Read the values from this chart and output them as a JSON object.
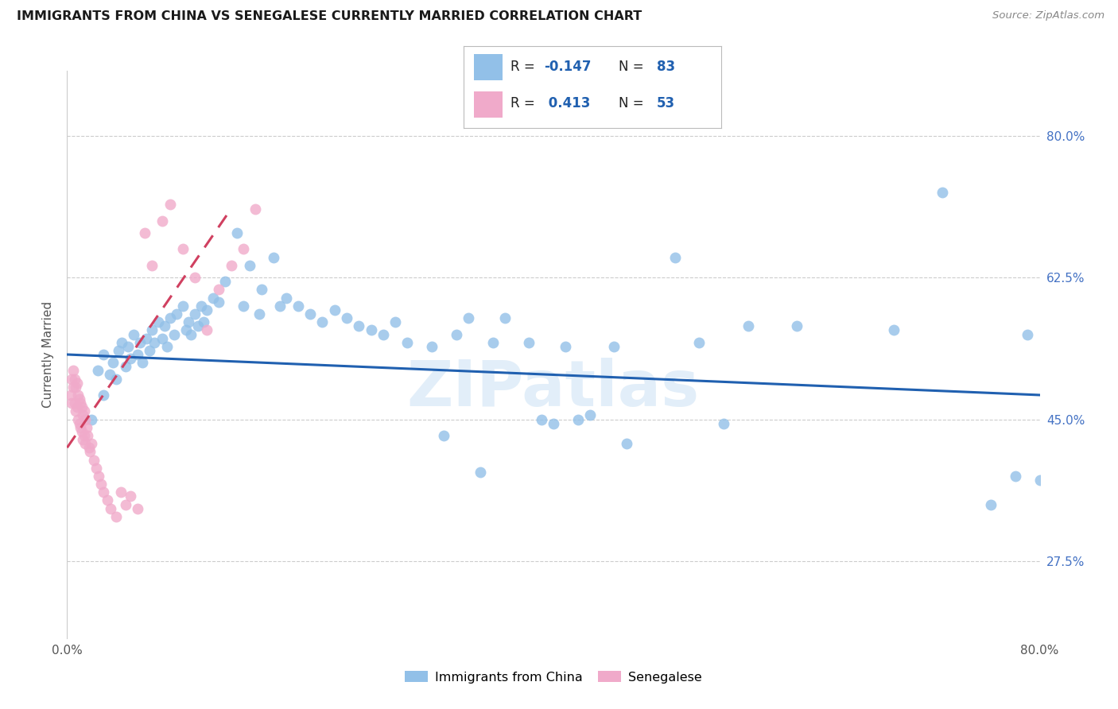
{
  "title": "IMMIGRANTS FROM CHINA VS SENEGALESE CURRENTLY MARRIED CORRELATION CHART",
  "source": "Source: ZipAtlas.com",
  "ylabel": "Currently Married",
  "x_min": 0.0,
  "x_max": 0.8,
  "y_min": 0.18,
  "y_max": 0.88,
  "x_tick_positions": [
    0.0,
    0.1,
    0.2,
    0.3,
    0.4,
    0.5,
    0.6,
    0.7,
    0.8
  ],
  "x_tick_labels": [
    "0.0%",
    "",
    "",
    "",
    "",
    "",
    "",
    "",
    "80.0%"
  ],
  "y_tick_labels_right": [
    "80.0%",
    "62.5%",
    "45.0%",
    "27.5%"
  ],
  "y_tick_positions_right": [
    0.8,
    0.625,
    0.45,
    0.275
  ],
  "legend_labels": [
    "Immigrants from China",
    "Senegalese"
  ],
  "blue_color": "#92C0E8",
  "pink_color": "#F0AACA",
  "blue_line_color": "#2060B0",
  "pink_line_color": "#D04060",
  "watermark": "ZIPatlas",
  "blue_scatter_x": [
    0.02,
    0.025,
    0.03,
    0.03,
    0.035,
    0.038,
    0.04,
    0.042,
    0.045,
    0.048,
    0.05,
    0.052,
    0.055,
    0.058,
    0.06,
    0.062,
    0.065,
    0.068,
    0.07,
    0.072,
    0.075,
    0.078,
    0.08,
    0.082,
    0.085,
    0.088,
    0.09,
    0.095,
    0.098,
    0.1,
    0.102,
    0.105,
    0.108,
    0.11,
    0.112,
    0.115,
    0.12,
    0.125,
    0.13,
    0.14,
    0.145,
    0.15,
    0.158,
    0.16,
    0.17,
    0.175,
    0.18,
    0.19,
    0.2,
    0.21,
    0.22,
    0.23,
    0.24,
    0.25,
    0.26,
    0.27,
    0.28,
    0.3,
    0.31,
    0.32,
    0.33,
    0.34,
    0.35,
    0.36,
    0.38,
    0.39,
    0.4,
    0.41,
    0.42,
    0.43,
    0.45,
    0.46,
    0.5,
    0.52,
    0.54,
    0.56,
    0.6,
    0.68,
    0.72,
    0.76,
    0.78,
    0.79,
    0.8
  ],
  "blue_scatter_y": [
    0.45,
    0.51,
    0.48,
    0.53,
    0.505,
    0.52,
    0.5,
    0.535,
    0.545,
    0.515,
    0.54,
    0.525,
    0.555,
    0.53,
    0.545,
    0.52,
    0.55,
    0.535,
    0.56,
    0.545,
    0.57,
    0.55,
    0.565,
    0.54,
    0.575,
    0.555,
    0.58,
    0.59,
    0.56,
    0.57,
    0.555,
    0.58,
    0.565,
    0.59,
    0.57,
    0.585,
    0.6,
    0.595,
    0.62,
    0.68,
    0.59,
    0.64,
    0.58,
    0.61,
    0.65,
    0.59,
    0.6,
    0.59,
    0.58,
    0.57,
    0.585,
    0.575,
    0.565,
    0.56,
    0.555,
    0.57,
    0.545,
    0.54,
    0.43,
    0.555,
    0.575,
    0.385,
    0.545,
    0.575,
    0.545,
    0.45,
    0.445,
    0.54,
    0.45,
    0.455,
    0.54,
    0.42,
    0.65,
    0.545,
    0.445,
    0.565,
    0.565,
    0.56,
    0.73,
    0.345,
    0.38,
    0.555,
    0.375
  ],
  "pink_scatter_x": [
    0.003,
    0.004,
    0.004,
    0.005,
    0.005,
    0.006,
    0.006,
    0.007,
    0.007,
    0.008,
    0.008,
    0.009,
    0.009,
    0.01,
    0.01,
    0.011,
    0.011,
    0.012,
    0.012,
    0.013,
    0.013,
    0.014,
    0.014,
    0.015,
    0.015,
    0.016,
    0.017,
    0.018,
    0.019,
    0.02,
    0.022,
    0.024,
    0.026,
    0.028,
    0.03,
    0.033,
    0.036,
    0.04,
    0.044,
    0.048,
    0.052,
    0.058,
    0.064,
    0.07,
    0.078,
    0.085,
    0.095,
    0.105,
    0.115,
    0.125,
    0.135,
    0.145,
    0.155
  ],
  "pink_scatter_y": [
    0.48,
    0.5,
    0.47,
    0.51,
    0.49,
    0.5,
    0.47,
    0.49,
    0.46,
    0.495,
    0.465,
    0.48,
    0.45,
    0.475,
    0.445,
    0.47,
    0.44,
    0.465,
    0.435,
    0.455,
    0.425,
    0.46,
    0.43,
    0.45,
    0.42,
    0.44,
    0.43,
    0.415,
    0.41,
    0.42,
    0.4,
    0.39,
    0.38,
    0.37,
    0.36,
    0.35,
    0.34,
    0.33,
    0.36,
    0.345,
    0.355,
    0.34,
    0.68,
    0.64,
    0.695,
    0.715,
    0.66,
    0.625,
    0.56,
    0.61,
    0.64,
    0.66,
    0.71
  ],
  "blue_trend_x": [
    0.0,
    0.8
  ],
  "blue_trend_y": [
    0.53,
    0.48
  ],
  "pink_trend_x": [
    0.0,
    0.135
  ],
  "pink_trend_y": [
    0.415,
    0.71
  ]
}
